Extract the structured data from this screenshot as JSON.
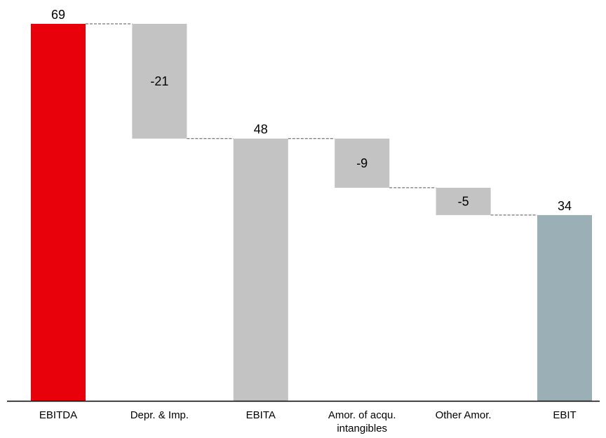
{
  "chart_data": {
    "type": "bar",
    "subtype": "waterfall",
    "categories": [
      "EBITDA",
      "Depr. & Imp.",
      "EBITA",
      "Amor. of acqu. intangibles",
      "Other Amor.",
      "EBIT"
    ],
    "category_lines": [
      [
        "EBITDA"
      ],
      [
        "Depr. & Imp."
      ],
      [
        "EBITA"
      ],
      [
        "Amor. of acqu.",
        "intangibles"
      ],
      [
        "Other Amor."
      ],
      [
        "EBIT"
      ]
    ],
    "values": [
      69,
      -21,
      48,
      -9,
      -5,
      34
    ],
    "kinds": [
      "total",
      "delta",
      "total",
      "delta",
      "delta",
      "total"
    ],
    "value_labels": [
      "69",
      "-21",
      "48",
      "-9",
      "-5",
      "34"
    ],
    "colors": [
      "#e8000a",
      "#c3c3c3",
      "#c3c3c3",
      "#c3c3c3",
      "#c3c3c3",
      "#9aafb6"
    ],
    "connector_color": "#555555",
    "axis_color": "#000000",
    "ylim": [
      0,
      69
    ],
    "grid": false,
    "legend": "none"
  }
}
